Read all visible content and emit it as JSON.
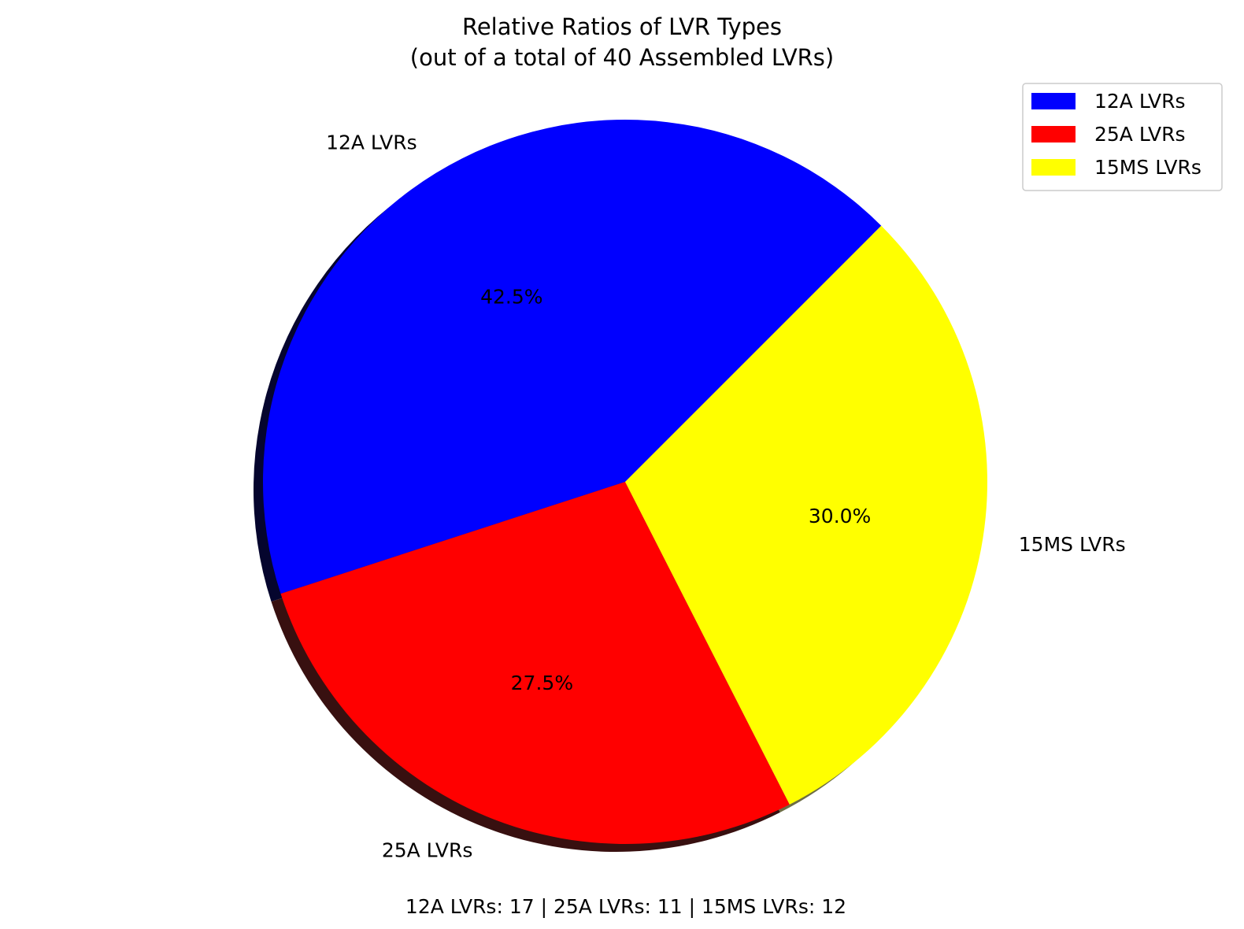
{
  "chart_data": {
    "type": "pie",
    "title": "Relative Ratios of LVR Types",
    "subtitle": "(out of a total of 40 Assembled LVRs)",
    "categories": [
      "12A LVRs",
      "25A LVRs",
      "15MS LVRs"
    ],
    "values": [
      17,
      11,
      12
    ],
    "percent_labels": [
      "42.5%",
      "27.5%",
      "30.0%"
    ],
    "colors": [
      "#0000ff",
      "#ff0000",
      "#ffff00"
    ],
    "start_angle_deg": 45,
    "direction": "counterclockwise",
    "shadow": true,
    "legend": {
      "placement": "top-right",
      "entries": [
        "12A LVRs",
        "25A LVRs",
        "15MS LVRs"
      ]
    },
    "footer": "12A LVRs: 17 | 25A LVRs: 11 | 15MS LVRs: 12"
  }
}
